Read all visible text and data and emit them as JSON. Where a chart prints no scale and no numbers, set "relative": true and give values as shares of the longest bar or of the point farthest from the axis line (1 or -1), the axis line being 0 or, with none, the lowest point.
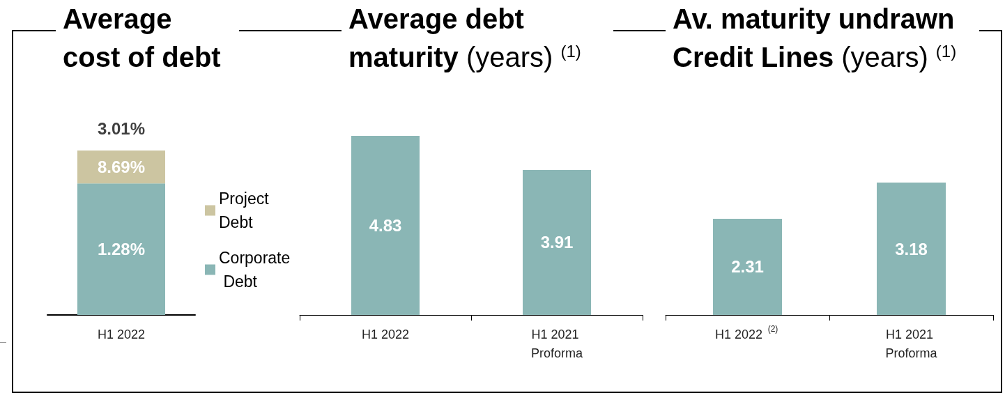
{
  "chart_data": [
    {
      "type": "bar",
      "title": "Average cost of debt",
      "categories": [
        "H1 2022"
      ],
      "stacked": true,
      "relative": true,
      "legend": "right",
      "series": [
        {
          "name": "Corporate Debt",
          "color": "#8ab6b5",
          "values": [
            0.8
          ]
        },
        {
          "name": "Project Debt",
          "color": "#ccc5a1",
          "values": [
            0.2
          ]
        }
      ],
      "annotations": [
        "3.01%",
        "8.69%",
        "1.28%"
      ]
    },
    {
      "type": "bar",
      "title": "Average debt maturity (years) $^{(1)}$",
      "categories": [
        "H1 2022",
        "H1 2021 Proforma"
      ],
      "values": [
        4.83,
        3.91
      ],
      "color": "#8ab6b5",
      "data_labels": true
    },
    {
      "type": "bar",
      "title": "Av. maturity undrawn Credit Lines (years) $^{(1)}$",
      "categories": [
        "H1 2022 $^{(2)}$",
        "H1 2021 Proforma"
      ],
      "values": [
        2.31,
        3.18
      ],
      "color": "#8ab6b5",
      "data_labels": true
    }
  ]
}
